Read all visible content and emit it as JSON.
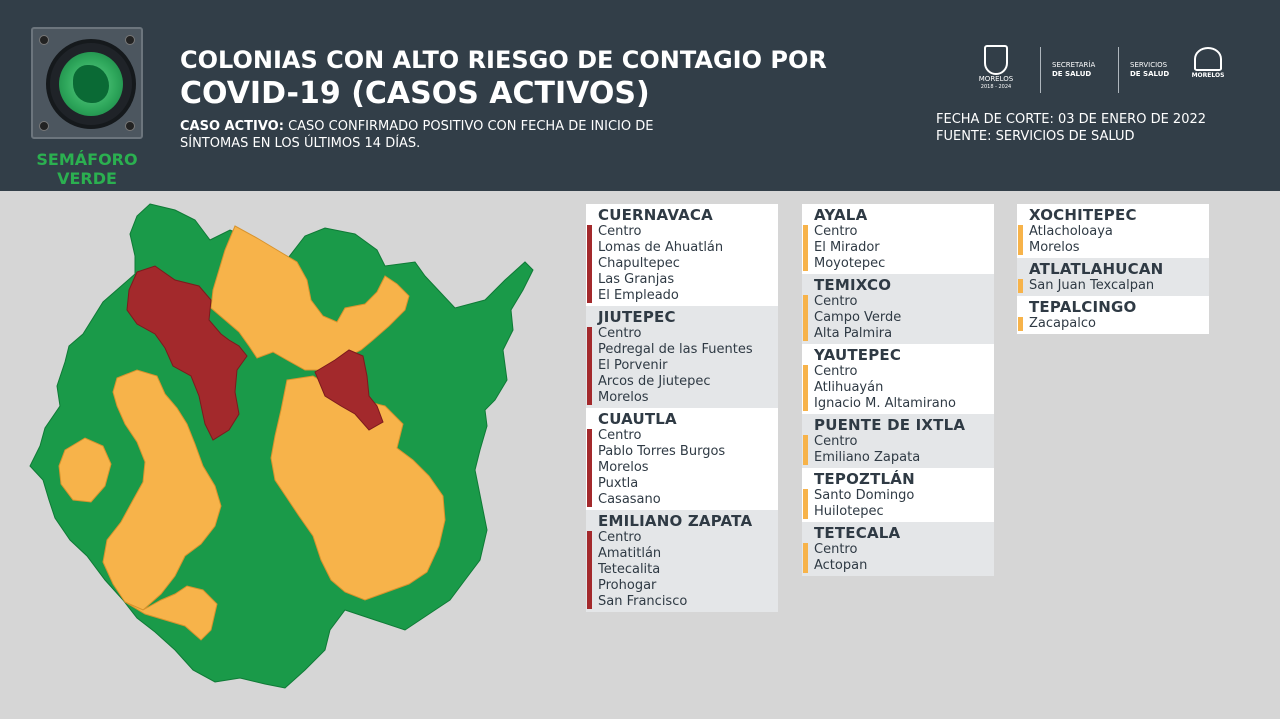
{
  "header": {
    "semaforo_label_1": "SEMÁFORO",
    "semaforo_label_2": "VERDE",
    "title_line1": "COLONIAS CON ALTO RIESGO DE CONTAGIO POR",
    "title_line2": "COVID-19 (CASOS ACTIVOS)",
    "definition_label": "CASO ACTIVO:",
    "definition_text": " CASO CONFIRMADO POSITIVO CON FECHA DE INICIO DE SÍNTOMAS EN LOS ÚLTIMOS 14 DÍAS.",
    "cut_date": "FECHA DE CORTE: 03 DE ENERO DE 2022",
    "source": "FUENTE: SERVICIOS DE SALUD",
    "logo_morelos": "MORELOS",
    "logo_morelos_years": "2018 - 2024",
    "logo_secretaria_1": "SECRETARÍA",
    "logo_secretaria_2": "DE SALUD",
    "logo_servicios_1": "SERVICIOS",
    "logo_servicios_2": "DE SALUD",
    "logo_morelos_2": "MORELOS"
  },
  "colors": {
    "green": "#1a9a49",
    "orange": "#f7b34a",
    "red": "#a3292c",
    "header_bg": "#323e48"
  },
  "municipalities": [
    {
      "name": "CUERNAVACA",
      "risk": "red",
      "colonias": [
        "Centro",
        "Lomas de Ahuatlán",
        "Chapultepec",
        "Las Granjas",
        "El Empleado"
      ]
    },
    {
      "name": "JIUTEPEC",
      "risk": "red",
      "colonias": [
        "Centro",
        "Pedregal de las Fuentes",
        "El Porvenir",
        "Arcos de Jiutepec",
        "Morelos"
      ]
    },
    {
      "name": "CUAUTLA",
      "risk": "red",
      "colonias": [
        "Centro",
        "Pablo Torres Burgos",
        "Morelos",
        "Puxtla",
        "Casasano"
      ]
    },
    {
      "name": "EMILIANO ZAPATA",
      "risk": "red",
      "colonias": [
        "Centro",
        "Amatitlán",
        "Tetecalita",
        "Prohogar",
        "San Francisco"
      ]
    },
    {
      "name": "AYALA",
      "risk": "orange",
      "colonias": [
        "Centro",
        "El Mirador",
        "Moyotepec"
      ]
    },
    {
      "name": "TEMIXCO",
      "risk": "orange",
      "colonias": [
        "Centro",
        "Campo Verde",
        "Alta Palmira"
      ]
    },
    {
      "name": "YAUTEPEC",
      "risk": "orange",
      "colonias": [
        "Centro",
        "Atlihuayán",
        "Ignacio M. Altamirano"
      ]
    },
    {
      "name": "PUENTE DE IXTLA",
      "risk": "orange",
      "colonias": [
        "Centro",
        "Emiliano Zapata"
      ]
    },
    {
      "name": "TEPOZTLÁN",
      "risk": "orange",
      "colonias": [
        "Santo Domingo",
        "Huilotepec"
      ]
    },
    {
      "name": "TETECALA",
      "risk": "orange",
      "colonias": [
        "Centro",
        "Actopan"
      ]
    },
    {
      "name": "XOCHITEPEC",
      "risk": "orange",
      "colonias": [
        "Atlacholoaya",
        "Morelos"
      ]
    },
    {
      "name": "ATLATLAHUCAN",
      "risk": "orange",
      "colonias": [
        "San Juan Texcalpan"
      ]
    },
    {
      "name": "TEPALCINGO",
      "risk": "orange",
      "colonias": [
        "Zacapalco"
      ]
    }
  ]
}
